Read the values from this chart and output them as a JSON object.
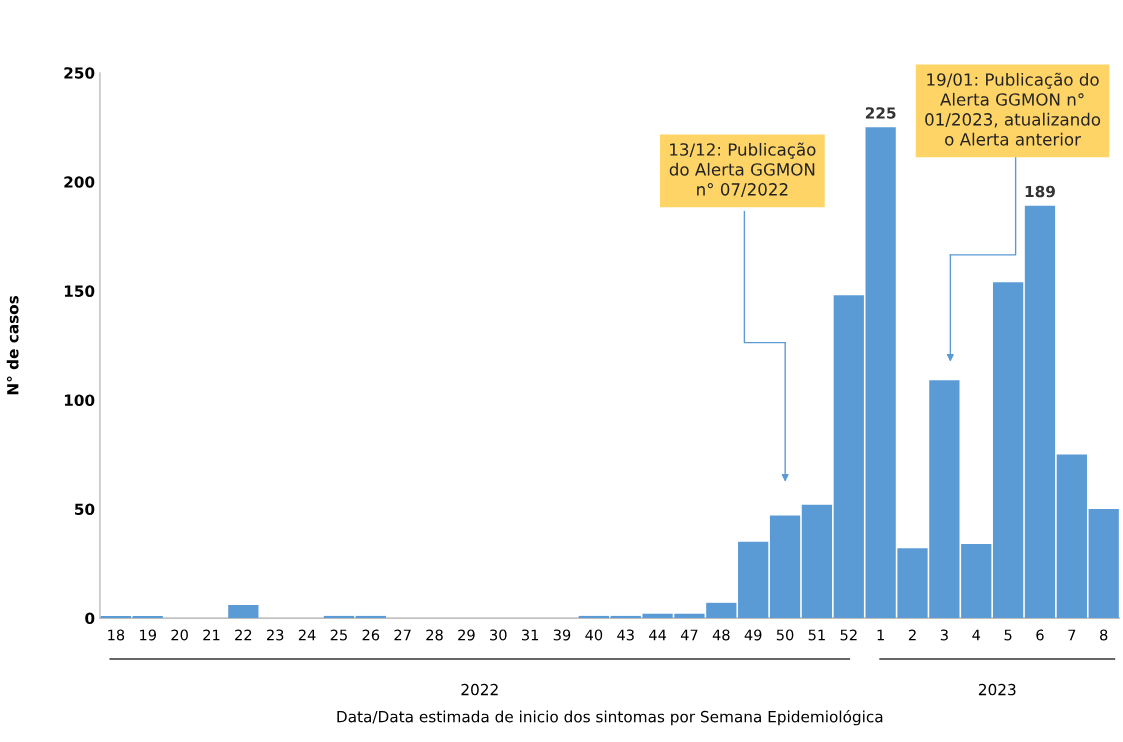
{
  "chart_data": {
    "type": "bar",
    "categories": [
      "18",
      "19",
      "20",
      "21",
      "22",
      "23",
      "24",
      "25",
      "26",
      "27",
      "28",
      "29",
      "30",
      "31",
      "39",
      "40",
      "43",
      "44",
      "47",
      "48",
      "49",
      "50",
      "51",
      "52",
      "1",
      "2",
      "3",
      "4",
      "5",
      "6",
      "7",
      "8"
    ],
    "values": [
      1,
      1,
      0,
      0,
      6,
      0,
      0,
      1,
      1,
      0,
      0,
      0,
      0,
      0,
      0,
      1,
      1,
      2,
      2,
      7,
      35,
      47,
      52,
      148,
      225,
      32,
      109,
      34,
      154,
      189,
      75,
      50
    ],
    "value_labels": [
      null,
      null,
      null,
      null,
      null,
      null,
      null,
      null,
      null,
      null,
      null,
      null,
      null,
      null,
      null,
      null,
      null,
      null,
      null,
      null,
      null,
      null,
      null,
      null,
      "225",
      null,
      null,
      null,
      null,
      "189",
      null,
      null
    ],
    "color": "#5b9bd5",
    "ylim": [
      0,
      250
    ],
    "yticks": [
      0,
      50,
      100,
      150,
      200,
      250
    ],
    "ylabel": "N° de casos",
    "xlabel": "Data/Data estimada de inicio dos sintomas por Semana Epidemiológica",
    "grid": false,
    "annotations": [
      "13/12: Publicação\ndo Alerta GGMON\nn° 07/2022",
      "19/01: Publicação do\nAlerta GGMON n°\n01/2023, atualizando\no Alerta anterior",
      "2022",
      "2023"
    ]
  }
}
